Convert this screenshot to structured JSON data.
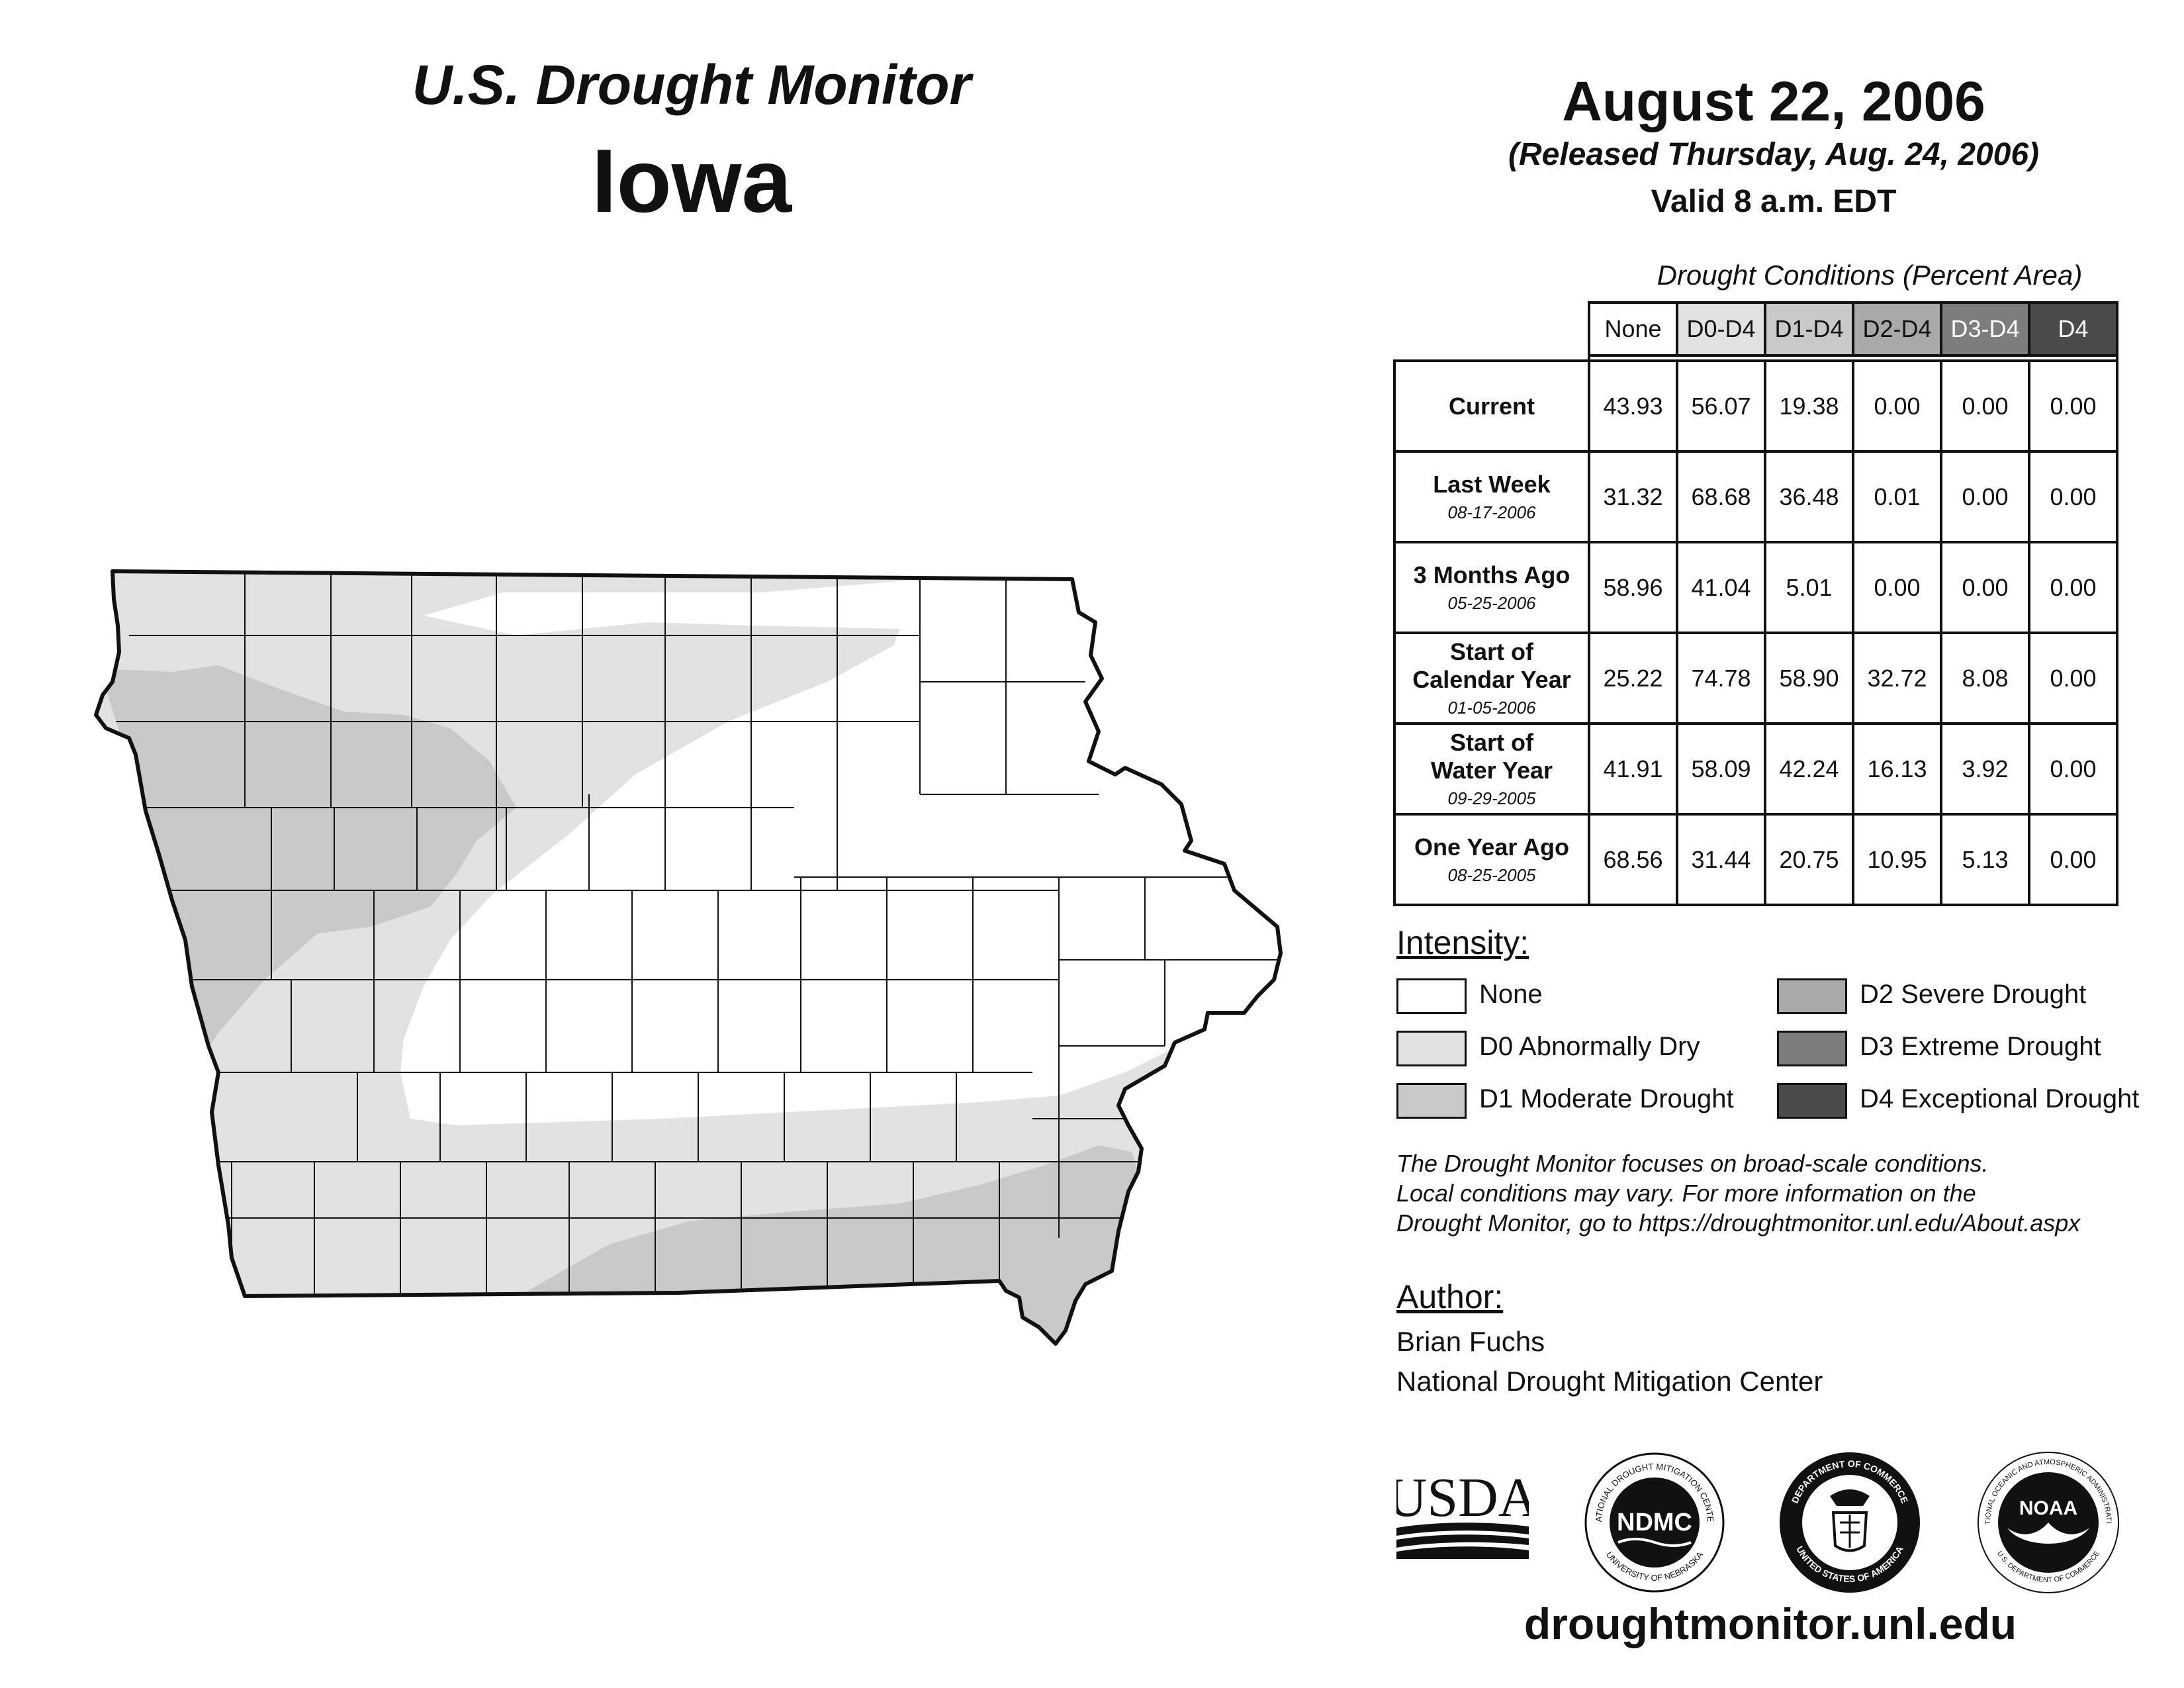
{
  "header": {
    "title": "U.S. Drought Monitor",
    "state": "Iowa"
  },
  "date": {
    "main": "August 22, 2006",
    "released": "(Released Thursday, Aug. 24, 2006)",
    "valid": "Valid 8 a.m. EDT"
  },
  "conditions": {
    "caption": "Drought Conditions (Percent Area)",
    "columns": [
      "None",
      "D0-D4",
      "D1-D4",
      "D2-D4",
      "D3-D4",
      "D4"
    ],
    "rows": [
      {
        "label": "Current",
        "date": "",
        "values": [
          "43.93",
          "56.07",
          "19.38",
          "0.00",
          "0.00",
          "0.00"
        ]
      },
      {
        "label": "Last Week",
        "date": "08-17-2006",
        "values": [
          "31.32",
          "68.68",
          "36.48",
          "0.01",
          "0.00",
          "0.00"
        ]
      },
      {
        "label": "3 Months Ago",
        "date": "05-25-2006",
        "values": [
          "58.96",
          "41.04",
          "5.01",
          "0.00",
          "0.00",
          "0.00"
        ]
      },
      {
        "label": "Start of Calendar Year",
        "label_lines": [
          "Start of",
          "Calendar Year"
        ],
        "date": "01-05-2006",
        "values": [
          "25.22",
          "74.78",
          "58.90",
          "32.72",
          "8.08",
          "0.00"
        ]
      },
      {
        "label": "Start of Water Year",
        "label_lines": [
          "Start of",
          "Water Year"
        ],
        "date": "09-29-2005",
        "values": [
          "41.91",
          "58.09",
          "42.24",
          "16.13",
          "3.92",
          "0.00"
        ]
      },
      {
        "label": "One Year Ago",
        "date": "08-25-2005",
        "values": [
          "68.56",
          "31.44",
          "20.75",
          "10.95",
          "5.13",
          "0.00"
        ]
      }
    ]
  },
  "legend": {
    "title": "Intensity:",
    "items": [
      {
        "label": "None",
        "color": "#ffffff"
      },
      {
        "label": "D0 Abnormally Dry",
        "color": "#e2e2e2"
      },
      {
        "label": "D1 Moderate Drought",
        "color": "#c9c9c9"
      },
      {
        "label": "D2 Severe Drought",
        "color": "#a9a9a9"
      },
      {
        "label": "D3 Extreme Drought",
        "color": "#7d7d7d"
      },
      {
        "label": "D4 Exceptional Drought",
        "color": "#4a4a4a"
      }
    ]
  },
  "disclaimer": [
    "The Drought Monitor focuses on broad-scale conditions.",
    "Local conditions may vary. For more information on the",
    "Drought Monitor, go to https://droughtmonitor.unl.edu/About.aspx"
  ],
  "author": {
    "title": "Author:",
    "name": "Brian Fuchs",
    "org": "National Drought Mitigation Center"
  },
  "logos": {
    "usda": "USDA",
    "ndmc": "NDMC",
    "ndmc_ring_top": "NATIONAL DROUGHT MITIGATION CENTER",
    "ndmc_ring_bottom": "UNIVERSITY OF NEBRASKA",
    "doc_ring_top": "DEPARTMENT OF COMMERCE",
    "doc_ring_bottom": "UNITED STATES OF AMERICA",
    "noaa": "NOAA",
    "noaa_ring_top": "NATIONAL OCEANIC AND ATMOSPHERIC ADMINISTRATION",
    "noaa_ring_bottom": "U.S. DEPARTMENT OF COMMERCE"
  },
  "site_url": "droughtmonitor.unl.edu",
  "colors": {
    "header_none": "#ffffff",
    "header_d0": "#e2e2e2",
    "header_d1": "#c9c9c9",
    "header_d2": "#a9a9a9",
    "header_d3": "#7d7d7d",
    "header_d4": "#4a4a4a",
    "map_outline": "#111111"
  }
}
